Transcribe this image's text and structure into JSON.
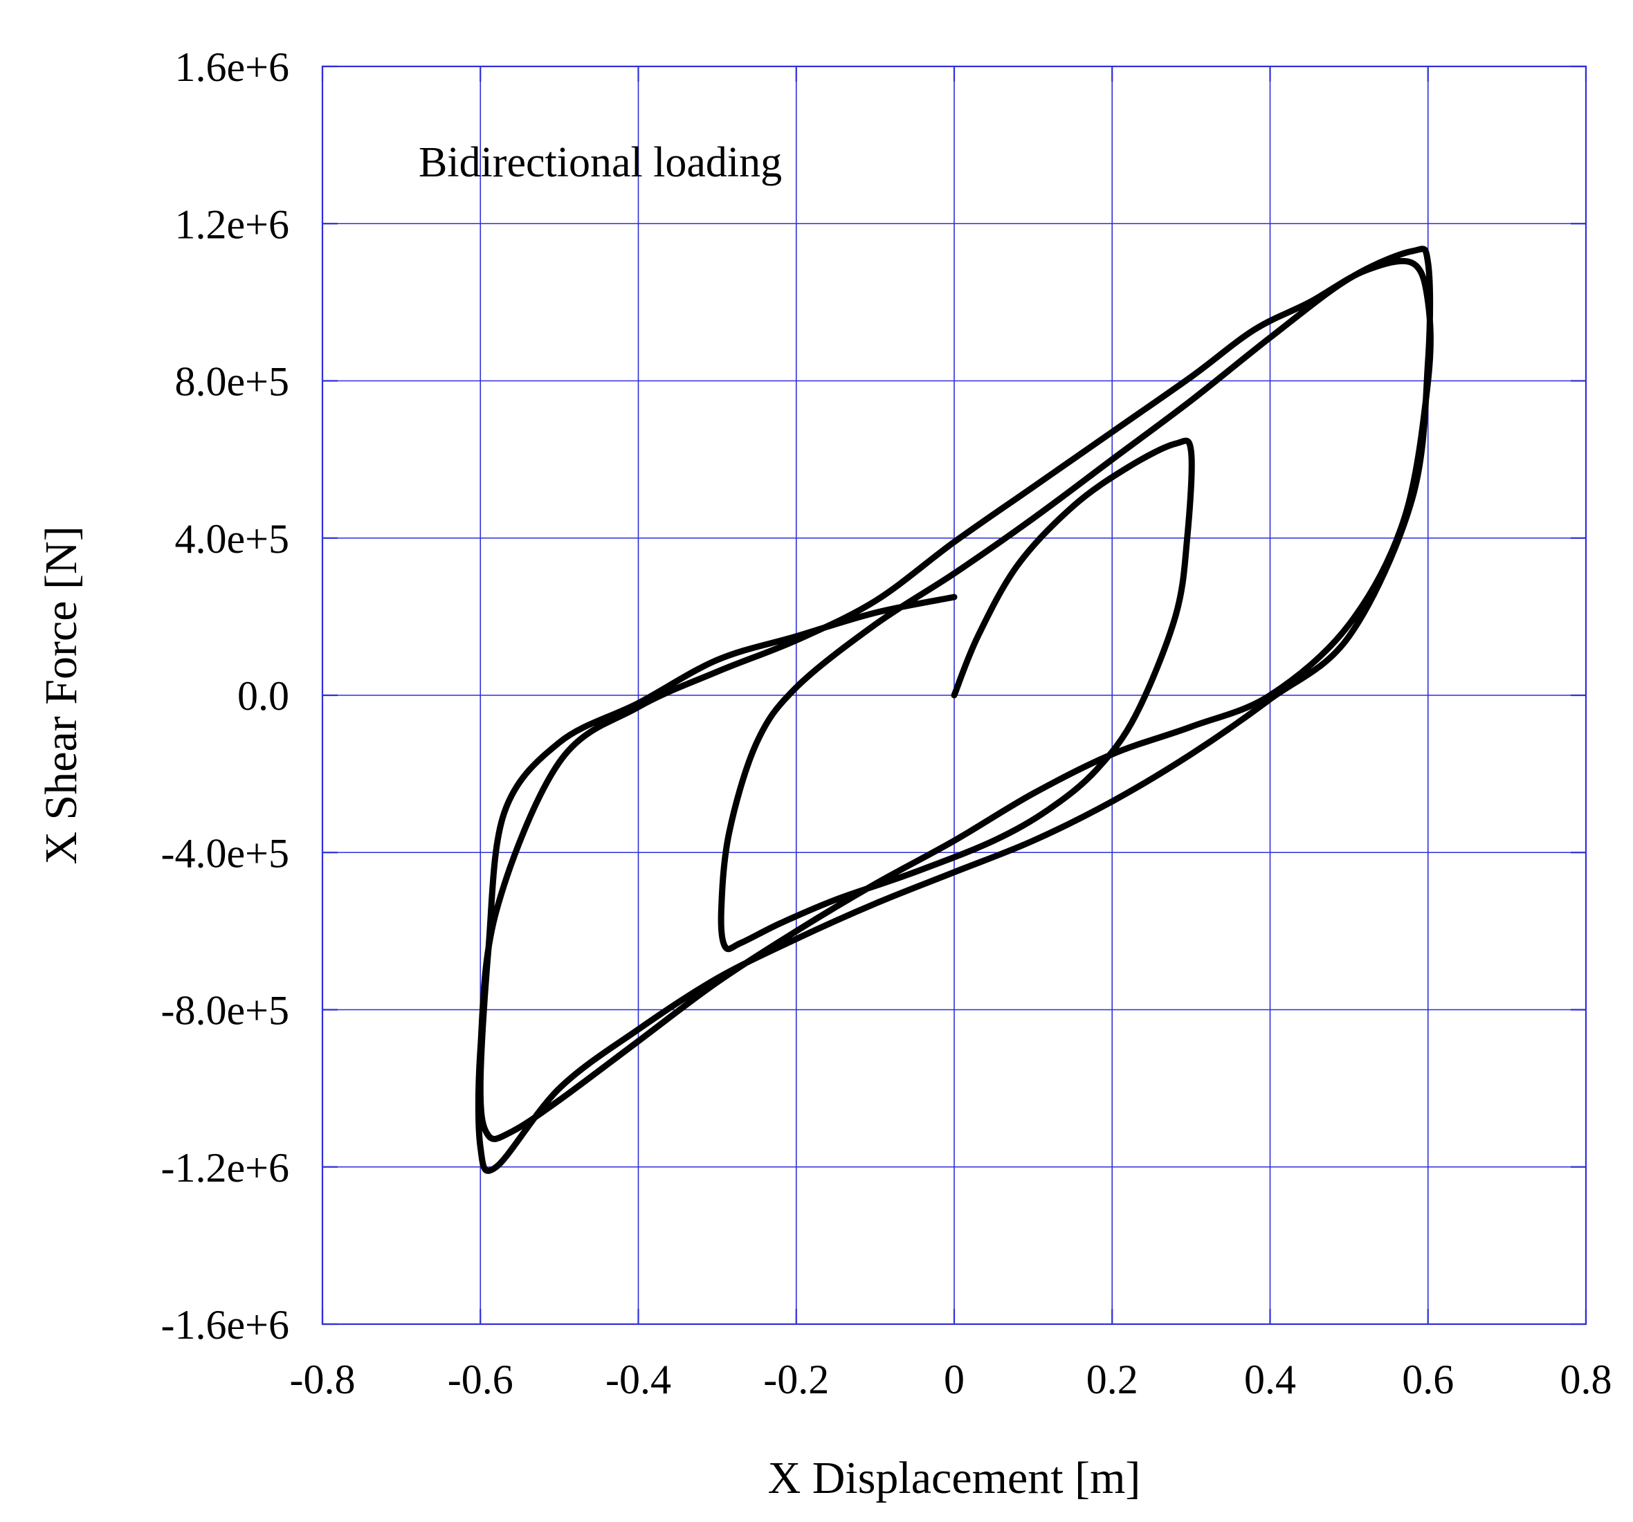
{
  "chart_data": {
    "type": "line",
    "title": "",
    "annotation": "Bidirectional loading",
    "xlabel": "X Displacement [m]",
    "ylabel": "X Shear Force [N]",
    "xlim": [
      -0.8,
      0.8
    ],
    "ylim": [
      -1600000,
      1600000
    ],
    "x_ticks": [
      -0.8,
      -0.6,
      -0.4,
      -0.2,
      0,
      0.2,
      0.4,
      0.6,
      0.8
    ],
    "x_tick_labels": [
      "-0.8",
      "-0.6",
      "-0.4",
      "-0.2",
      "0",
      "0.2",
      "0.4",
      "0.6",
      "0.8"
    ],
    "y_ticks": [
      1600000,
      1200000,
      800000,
      400000,
      0,
      -400000,
      -800000,
      -1200000,
      -1600000
    ],
    "y_tick_labels": [
      "1.6e+6",
      "1.2e+6",
      "8.0e+5",
      "4.0e+5",
      "0.0",
      "-4.0e+5",
      "-8.0e+5",
      "-1.2e+6",
      "-1.6e+6"
    ],
    "grid": true,
    "colors": {
      "grid": "#2e2ed8",
      "series": "#000000"
    },
    "series": [
      {
        "x": [
          0.0,
          0.03,
          0.08,
          0.15,
          0.22,
          0.28,
          0.3,
          0.295,
          0.28,
          0.23,
          0.18,
          0.12,
          0.05,
          -0.05,
          -0.15,
          -0.22,
          -0.27,
          -0.29,
          -0.295,
          -0.285,
          -0.25,
          -0.2,
          -0.1,
          0.0,
          0.1,
          0.2,
          0.3,
          0.4,
          0.5,
          0.58,
          0.6,
          0.6,
          0.58,
          0.5,
          0.4,
          0.3,
          0.2,
          0.1,
          0.0,
          -0.1,
          -0.2,
          -0.3,
          -0.4,
          -0.5,
          -0.58,
          -0.6,
          -0.6,
          -0.58,
          -0.5,
          -0.4,
          -0.3,
          -0.2,
          -0.1,
          0.0,
          0.1,
          0.2,
          0.3,
          0.38,
          0.45,
          0.52,
          0.58,
          0.6,
          0.6,
          0.57,
          0.5,
          0.4,
          0.3,
          0.2,
          0.1,
          0.0,
          -0.1,
          -0.2,
          -0.3,
          -0.4,
          -0.5,
          -0.56,
          -0.59,
          -0.6,
          -0.59,
          -0.57,
          -0.5,
          -0.4,
          -0.3,
          -0.2,
          -0.1,
          0.0
        ],
        "y": [
          0,
          150000,
          330000,
          480000,
          580000,
          640000,
          620000,
          400000,
          200000,
          -50000,
          -190000,
          -290000,
          -370000,
          -450000,
          -520000,
          -580000,
          -630000,
          -640000,
          -550000,
          -350000,
          -120000,
          20000,
          180000,
          310000,
          450000,
          600000,
          750000,
          910000,
          1060000,
          1130000,
          1100000,
          850000,
          500000,
          150000,
          -10000,
          -150000,
          -270000,
          -370000,
          -450000,
          -530000,
          -620000,
          -720000,
          -850000,
          -1000000,
          -1200000,
          -1150000,
          -900000,
          -550000,
          -170000,
          -30000,
          60000,
          140000,
          240000,
          390000,
          530000,
          670000,
          810000,
          930000,
          1000000,
          1080000,
          1100000,
          1000000,
          800000,
          450000,
          180000,
          0,
          -80000,
          -150000,
          -250000,
          -370000,
          -480000,
          -600000,
          -730000,
          -880000,
          -1030000,
          -1110000,
          -1120000,
          -1000000,
          -650000,
          -300000,
          -120000,
          -20000,
          90000,
          150000,
          210000,
          250000
        ]
      }
    ]
  }
}
